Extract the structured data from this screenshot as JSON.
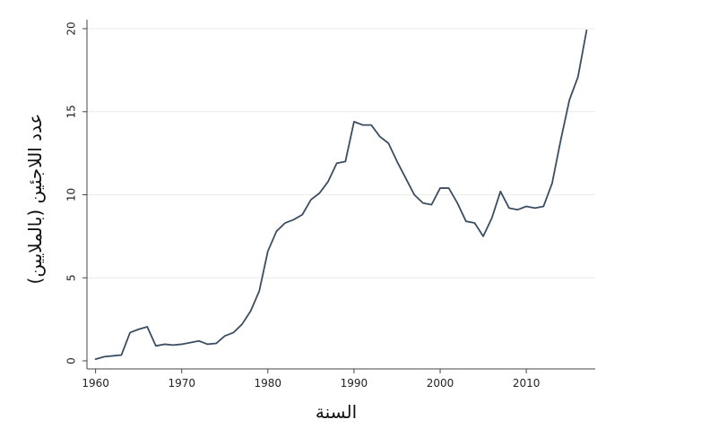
{
  "chart_data": {
    "type": "line",
    "xlabel": "السنة",
    "ylabel": "عدد اللاجئين (بالملايين)",
    "xlim": [
      1959,
      2018
    ],
    "ylim": [
      0,
      20
    ],
    "xticks": [
      1960,
      1970,
      1980,
      1990,
      2000,
      2010
    ],
    "yticks": [
      0,
      5,
      10,
      15,
      20
    ],
    "grid": "horizontal",
    "colors": {
      "line": "#3b4d61",
      "grid": "#ececec",
      "axis": "#444444"
    },
    "x": [
      1960,
      1961,
      1962,
      1963,
      1964,
      1965,
      1966,
      1967,
      1968,
      1969,
      1970,
      1971,
      1972,
      1973,
      1974,
      1975,
      1976,
      1977,
      1978,
      1979,
      1980,
      1981,
      1982,
      1983,
      1984,
      1985,
      1986,
      1987,
      1988,
      1989,
      1990,
      1991,
      1992,
      1993,
      1994,
      1995,
      1996,
      1997,
      1998,
      1999,
      2000,
      2001,
      2002,
      2003,
      2004,
      2005,
      2006,
      2007,
      2008,
      2009,
      2010,
      2011,
      2012,
      2013,
      2014,
      2015,
      2016,
      2017
    ],
    "values": [
      0.1,
      0.25,
      0.3,
      0.35,
      1.7,
      1.9,
      2.05,
      0.9,
      1.0,
      0.95,
      1.0,
      1.1,
      1.2,
      1.0,
      1.05,
      1.5,
      1.7,
      2.2,
      3.0,
      4.2,
      6.6,
      7.8,
      8.3,
      8.5,
      8.8,
      9.7,
      10.1,
      10.8,
      11.9,
      12.0,
      14.4,
      14.2,
      14.2,
      13.5,
      13.1,
      12.0,
      11.0,
      10.0,
      9.5,
      9.4,
      10.4,
      10.4,
      9.5,
      8.4,
      8.3,
      7.5,
      8.6,
      10.2,
      9.2,
      9.1,
      9.3,
      9.2,
      9.3,
      10.7,
      13.3,
      15.7,
      17.1,
      19.9
    ]
  }
}
